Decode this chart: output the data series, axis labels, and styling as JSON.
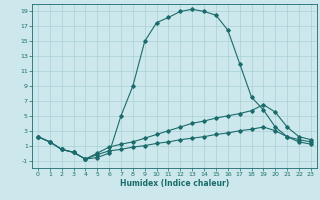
{
  "xlabel": "Humidex (Indice chaleur)",
  "background_color": "#cde8ec",
  "grid_color": "#a8d0d5",
  "line_color": "#1a6b6b",
  "xlim": [
    -0.5,
    23.5
  ],
  "ylim": [
    -2,
    20
  ],
  "xticks": [
    0,
    1,
    2,
    3,
    4,
    5,
    6,
    7,
    8,
    9,
    10,
    11,
    12,
    13,
    14,
    15,
    16,
    17,
    18,
    19,
    20,
    21,
    22,
    23
  ],
  "yticks": [
    -1,
    1,
    3,
    5,
    7,
    9,
    11,
    13,
    15,
    17,
    19
  ],
  "line1_x": [
    0,
    1,
    2,
    3,
    4,
    5,
    6,
    7,
    8,
    9,
    10,
    11,
    12,
    13,
    14,
    15,
    16,
    17,
    18,
    19,
    20,
    21,
    22,
    23
  ],
  "line1_y": [
    2.2,
    1.5,
    0.5,
    0.1,
    -0.8,
    -0.6,
    0.0,
    5.0,
    9.0,
    15.0,
    17.5,
    18.2,
    19.0,
    19.3,
    19.0,
    18.5,
    16.5,
    12.0,
    7.5,
    5.8,
    3.5,
    2.2,
    1.5,
    1.2
  ],
  "line2_x": [
    0,
    1,
    2,
    3,
    4,
    5,
    6,
    7,
    8,
    9,
    10,
    11,
    12,
    13,
    14,
    15,
    16,
    17,
    18,
    19,
    20,
    21,
    22,
    23
  ],
  "line2_y": [
    2.2,
    1.5,
    0.5,
    0.1,
    -0.8,
    0.0,
    0.8,
    1.2,
    1.5,
    2.0,
    2.5,
    3.0,
    3.5,
    4.0,
    4.3,
    4.7,
    5.0,
    5.3,
    5.7,
    6.5,
    5.5,
    3.5,
    2.2,
    1.8
  ],
  "line3_x": [
    0,
    1,
    2,
    3,
    4,
    5,
    6,
    7,
    8,
    9,
    10,
    11,
    12,
    13,
    14,
    15,
    16,
    17,
    18,
    19,
    20,
    21,
    22,
    23
  ],
  "line3_y": [
    2.2,
    1.5,
    0.5,
    0.1,
    -0.8,
    -0.2,
    0.3,
    0.5,
    0.8,
    1.0,
    1.3,
    1.5,
    1.8,
    2.0,
    2.2,
    2.5,
    2.7,
    3.0,
    3.2,
    3.5,
    3.0,
    2.2,
    1.8,
    1.5
  ]
}
